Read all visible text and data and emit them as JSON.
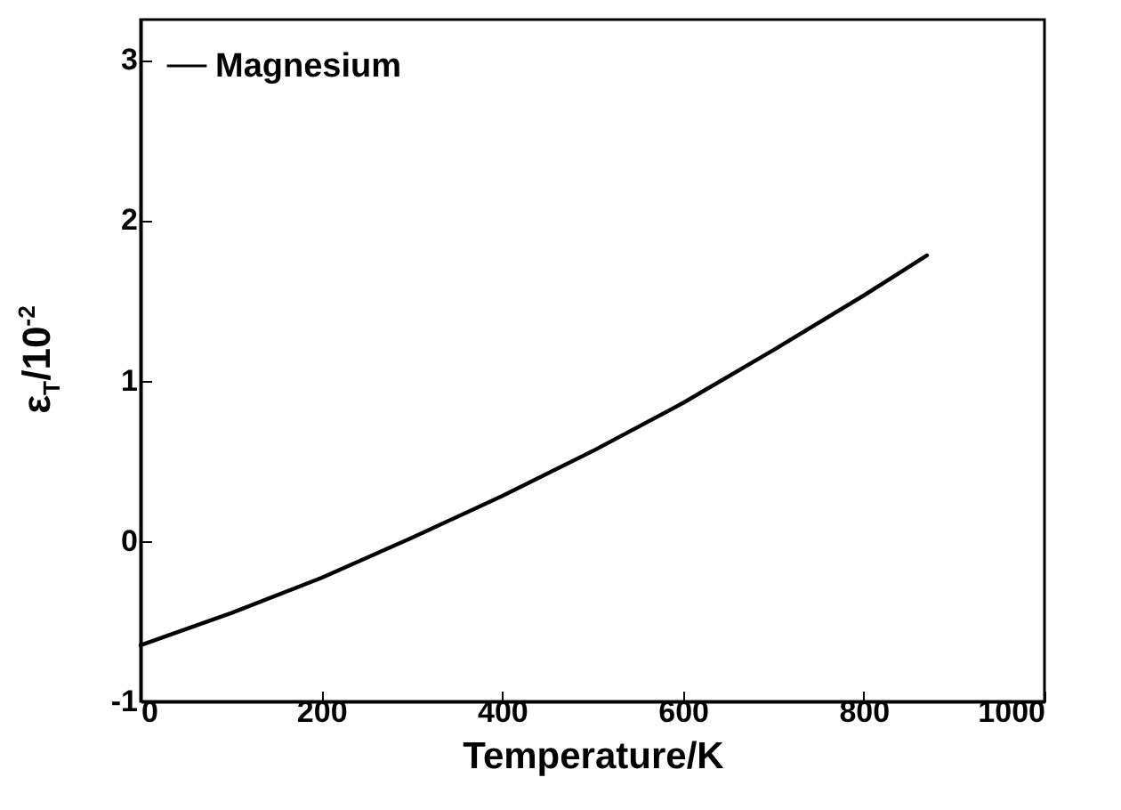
{
  "chart_data": {
    "type": "line",
    "xlabel": "Temperature/K",
    "ylabel": "ε$_{T}$/10$^{-2}$",
    "x": [
      0,
      100,
      200,
      300,
      400,
      500,
      600,
      700,
      800,
      870
    ],
    "series": [
      {
        "name": "Magnesium",
        "color": "#000000",
        "values": [
          -0.65,
          -0.45,
          -0.23,
          0.02,
          0.28,
          0.56,
          0.86,
          1.19,
          1.53,
          1.78
        ]
      }
    ],
    "xlim": [
      0,
      1000
    ],
    "xticks": [
      0,
      200,
      400,
      600,
      800,
      1000
    ],
    "ylim": [
      -1,
      3.25
    ],
    "yticks": [
      -1,
      0,
      1,
      2,
      3
    ],
    "grid": false,
    "legend": "top left",
    "marker": "none",
    "line_style": "solid"
  }
}
